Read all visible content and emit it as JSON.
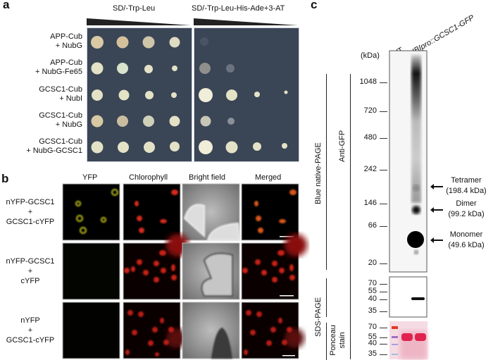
{
  "panel_a": {
    "label": "a",
    "media": [
      "SD/-Trp-Leu",
      "SD/-Trp-Leu-His-Ade+3-AT"
    ],
    "rows": [
      {
        "line1": "APP-Cub",
        "line2": "+ NubG"
      },
      {
        "line1": "APP-Cub",
        "line2": "+ NubG-Fe65"
      },
      {
        "line1": "GCSC1-Cub",
        "line2": "+ NubI"
      },
      {
        "line1": "GCSC1-Cub",
        "line2": "+ NubG"
      },
      {
        "line1": "GCSC1-Cub",
        "line2": "+ NubG-GCSC1"
      }
    ],
    "plate_color": "#3a4556"
  },
  "panel_b": {
    "label": "b",
    "columns": [
      "YFP",
      "Chlorophyll",
      "Bright field",
      "Merged"
    ],
    "rows": [
      {
        "line1": "nYFP-GCSC1",
        "line2": "+",
        "line3": "GCSC1-cYFP"
      },
      {
        "line1": "nYFP-GCSC1",
        "line2": "+",
        "line3": "cYFP"
      },
      {
        "line1": "nYFP",
        "line2": "+",
        "line3": "GCSC1-cYFP"
      }
    ]
  },
  "panel_c": {
    "label": "c",
    "lanes": [
      "WT",
      "UBIpro::GCSC1-GFP"
    ],
    "unit": "(kDa)",
    "blue_native_label": "Blue native-PAGE",
    "anti_gfp_label": "Anti-GFP",
    "sds_label": "SDS-PAGE",
    "ponceau_label": "Ponceau stain",
    "native_markers": [
      "1048",
      "720",
      "480",
      "242",
      "146",
      "66",
      "20"
    ],
    "sds_markers": [
      "70",
      "55",
      "40",
      "35"
    ],
    "ponceau_markers": [
      "70",
      "55",
      "40",
      "35"
    ],
    "bands": [
      {
        "name": "Tetramer",
        "size": "(198.4 kDa)"
      },
      {
        "name": "Dimer",
        "size": "(99.2 kDa)"
      },
      {
        "name": "Monomer",
        "size": "(49.6 kDa)"
      }
    ]
  }
}
